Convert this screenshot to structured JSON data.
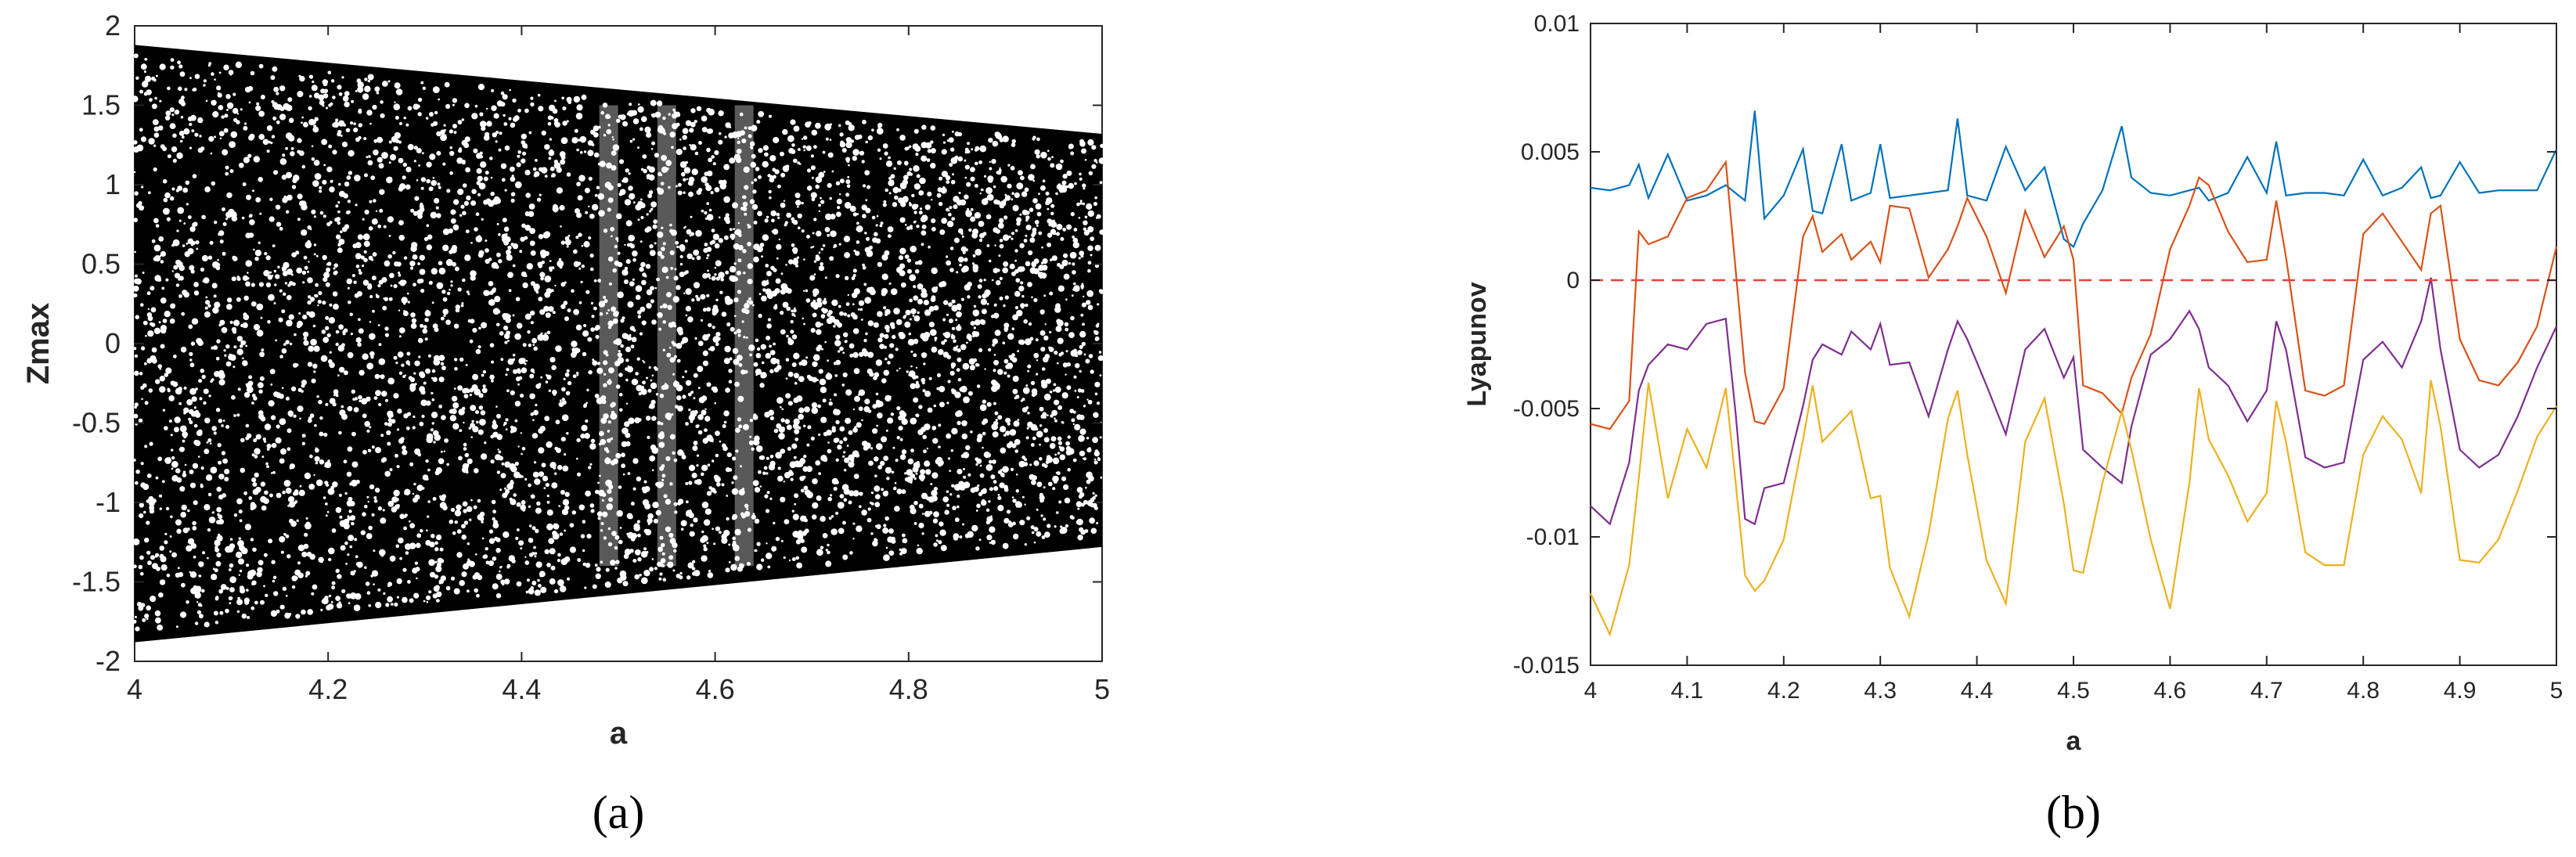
{
  "chart_data": [
    {
      "type": "scatter",
      "panel_label": "a",
      "xlabel": "a",
      "ylabel": "Zmax",
      "xlim": [
        4,
        5
      ],
      "ylim": [
        -2,
        2
      ],
      "xticks": [
        "4",
        "4.2",
        "4.4",
        "4.6",
        "4.8",
        "5"
      ],
      "yticks": [
        "2",
        "1.5",
        "1",
        "0.5",
        "0",
        "-0.5",
        "-1",
        "-1.5",
        "-2"
      ],
      "grid": false,
      "point_color": "#000000",
      "envelope": {
        "x": [
          4.0,
          5.0
        ],
        "upper": [
          1.88,
          1.32
        ],
        "lower": [
          -1.88,
          -1.28
        ]
      },
      "dense_band_regions": [
        {
          "x": 4.49,
          "note": ""
        },
        {
          "x": 4.55
        },
        {
          "x": 4.63
        }
      ]
    },
    {
      "type": "line",
      "panel_label": "b",
      "xlabel": "a",
      "ylabel": "Lyapunov",
      "xlim": [
        4,
        5
      ],
      "ylim": [
        -0.015,
        0.01
      ],
      "xticks": [
        "4",
        "4.1",
        "4.2",
        "4.3",
        "4.4",
        "4.5",
        "4.6",
        "4.7",
        "4.8",
        "4.9",
        "5"
      ],
      "yticks": [
        "0.01",
        "0.005",
        "0",
        "-0.005",
        "-0.01",
        "-0.015"
      ],
      "grid": false,
      "zero_line": {
        "y": 0,
        "color": "#e8413a",
        "style": "dashed"
      },
      "x": [
        4.0,
        4.02,
        4.04,
        4.05,
        4.06,
        4.08,
        4.1,
        4.12,
        4.14,
        4.15,
        4.16,
        4.17,
        4.18,
        4.2,
        4.22,
        4.23,
        4.24,
        4.26,
        4.27,
        4.29,
        4.3,
        4.31,
        4.33,
        4.35,
        4.37,
        4.38,
        4.39,
        4.41,
        4.43,
        4.45,
        4.47,
        4.49,
        4.5,
        4.51,
        4.53,
        4.55,
        4.56,
        4.58,
        4.6,
        4.62,
        4.63,
        4.64,
        4.66,
        4.68,
        4.7,
        4.71,
        4.72,
        4.74,
        4.76,
        4.78,
        4.8,
        4.82,
        4.84,
        4.86,
        4.87,
        4.88,
        4.9,
        4.92,
        4.94,
        4.96,
        4.98,
        5.0
      ],
      "series": [
        {
          "color": "#0072bd",
          "values": [
            0.0036,
            0.0035,
            0.0037,
            0.0045,
            0.0032,
            0.0049,
            0.0031,
            0.0033,
            0.0037,
            0.0034,
            0.0031,
            0.0066,
            0.0024,
            0.0033,
            0.0051,
            0.0027,
            0.0026,
            0.0053,
            0.0031,
            0.0034,
            0.0053,
            0.0032,
            0.0033,
            0.0034,
            0.0035,
            0.0063,
            0.0033,
            0.0031,
            0.0052,
            0.0035,
            0.0044,
            0.0016,
            0.0013,
            0.0022,
            0.0035,
            0.006,
            0.004,
            0.0034,
            0.0033,
            0.0035,
            0.0036,
            0.0031,
            0.0034,
            0.0048,
            0.0034,
            0.0054,
            0.0033,
            0.0034,
            0.0034,
            0.0033,
            0.0047,
            0.0033,
            0.0036,
            0.0044,
            0.0032,
            0.0033,
            0.0046,
            0.0034,
            0.0035,
            0.0035,
            0.0035,
            0.0051
          ]
        },
        {
          "color": "#d95319",
          "values": [
            -0.0056,
            -0.0058,
            -0.0047,
            0.0019,
            0.0014,
            0.0017,
            0.0032,
            0.0035,
            0.0046,
            0.0005,
            -0.0036,
            -0.0055,
            -0.0056,
            -0.0042,
            0.0017,
            0.0025,
            0.0011,
            0.0018,
            0.0008,
            0.0015,
            0.0007,
            0.0029,
            0.0028,
            0.0001,
            0.0012,
            0.0021,
            0.0032,
            0.0017,
            -0.0005,
            0.0027,
            0.0009,
            0.0021,
            0.0008,
            -0.0041,
            -0.0044,
            -0.0052,
            -0.0038,
            -0.0021,
            0.0012,
            0.0029,
            0.004,
            0.0037,
            0.0019,
            0.0007,
            0.0008,
            0.0031,
            0.0009,
            -0.0043,
            -0.0045,
            -0.0041,
            0.0018,
            0.0026,
            0.0015,
            0.0004,
            0.0026,
            0.0029,
            -0.0023,
            -0.0039,
            -0.0041,
            -0.0032,
            -0.0018,
            0.0013
          ]
        },
        {
          "color": "#7e2f8e",
          "values": [
            -0.0088,
            -0.0095,
            -0.0071,
            -0.0043,
            -0.0033,
            -0.0025,
            -0.0027,
            -0.0017,
            -0.0015,
            -0.0051,
            -0.0093,
            -0.0095,
            -0.0081,
            -0.0079,
            -0.0049,
            -0.0031,
            -0.0025,
            -0.0029,
            -0.002,
            -0.0027,
            -0.0017,
            -0.0033,
            -0.0032,
            -0.0053,
            -0.0027,
            -0.0016,
            -0.0023,
            -0.0041,
            -0.006,
            -0.0027,
            -0.0019,
            -0.0038,
            -0.003,
            -0.0066,
            -0.0073,
            -0.0079,
            -0.0057,
            -0.0029,
            -0.0023,
            -0.0012,
            -0.0019,
            -0.0034,
            -0.0041,
            -0.0055,
            -0.0043,
            -0.0016,
            -0.0027,
            -0.0069,
            -0.0073,
            -0.0071,
            -0.0031,
            -0.0024,
            -0.0034,
            -0.0016,
            0.0001,
            -0.0027,
            -0.0066,
            -0.0073,
            -0.0068,
            -0.0053,
            -0.0034,
            -0.0018
          ]
        },
        {
          "color": "#edb120",
          "values": [
            -0.0122,
            -0.0138,
            -0.0111,
            -0.0077,
            -0.004,
            -0.0085,
            -0.0058,
            -0.0073,
            -0.0042,
            -0.0078,
            -0.0115,
            -0.0121,
            -0.0117,
            -0.0101,
            -0.0062,
            -0.0041,
            -0.0063,
            -0.0055,
            -0.0051,
            -0.0085,
            -0.0084,
            -0.0112,
            -0.0131,
            -0.0099,
            -0.0054,
            -0.0043,
            -0.0068,
            -0.0109,
            -0.0126,
            -0.0063,
            -0.0046,
            -0.0087,
            -0.0113,
            -0.0114,
            -0.0079,
            -0.0051,
            -0.0066,
            -0.0101,
            -0.0128,
            -0.0079,
            -0.0042,
            -0.0062,
            -0.0076,
            -0.0094,
            -0.0083,
            -0.0047,
            -0.0063,
            -0.0106,
            -0.0111,
            -0.0111,
            -0.0068,
            -0.0053,
            -0.0062,
            -0.0083,
            -0.0039,
            -0.0057,
            -0.0109,
            -0.011,
            -0.0101,
            -0.0082,
            -0.0061,
            -0.0049
          ]
        }
      ]
    }
  ],
  "captions": {
    "a": "(a)",
    "b": "(b)"
  }
}
